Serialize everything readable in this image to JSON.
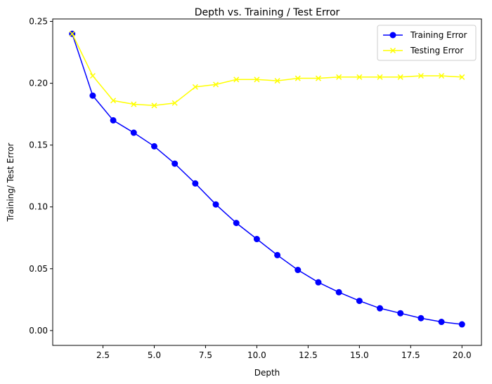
{
  "chart_data": {
    "type": "line",
    "title": "Depth vs. Training / Test Error",
    "xlabel": "Depth",
    "ylabel": "Training/ Test Error",
    "xlim": [
      0.05,
      20.95
    ],
    "ylim": [
      -0.012,
      0.252
    ],
    "xticks": [
      2.5,
      5.0,
      7.5,
      10.0,
      12.5,
      15.0,
      17.5,
      20.0
    ],
    "xtick_labels": [
      "2.5",
      "5.0",
      "7.5",
      "10.0",
      "12.5",
      "15.0",
      "17.5",
      "20.0"
    ],
    "yticks": [
      0.0,
      0.05,
      0.1,
      0.15,
      0.2,
      0.25
    ],
    "ytick_labels": [
      "0.00",
      "0.05",
      "0.10",
      "0.15",
      "0.20",
      "0.25"
    ],
    "x": [
      1,
      2,
      3,
      4,
      5,
      6,
      7,
      8,
      9,
      10,
      11,
      12,
      13,
      14,
      15,
      16,
      17,
      18,
      19,
      20
    ],
    "grid": false,
    "legend_position": "top-right",
    "series": [
      {
        "name": "Training Error",
        "color": "#0000ff",
        "marker": "circle",
        "values": [
          0.24,
          0.19,
          0.17,
          0.16,
          0.149,
          0.135,
          0.119,
          0.102,
          0.087,
          0.074,
          0.061,
          0.049,
          0.039,
          0.031,
          0.024,
          0.018,
          0.014,
          0.01,
          0.007,
          0.005
        ]
      },
      {
        "name": "Testing Error",
        "color": "#ffff00",
        "marker": "x",
        "values": [
          0.24,
          0.206,
          0.186,
          0.183,
          0.182,
          0.184,
          0.197,
          0.199,
          0.203,
          0.203,
          0.202,
          0.204,
          0.204,
          0.205,
          0.205,
          0.205,
          0.205,
          0.206,
          0.206,
          0.205
        ]
      }
    ]
  }
}
